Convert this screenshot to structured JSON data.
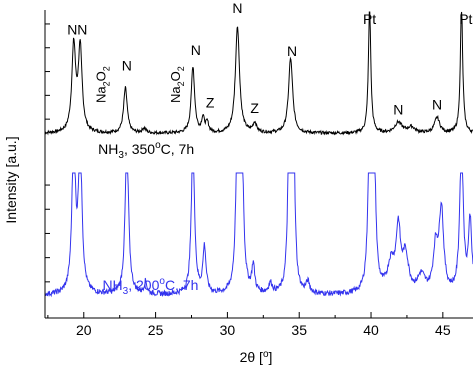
{
  "chart_data": {
    "type": "line",
    "title": "",
    "xlabel": "2θ [°]",
    "ylabel": "Intensity [a.u.]",
    "xlim": [
      17.3,
      47.1
    ],
    "x_ticks": [
      20,
      25,
      30,
      35,
      40,
      45
    ],
    "x_tick_labels": [
      "20",
      "25",
      "30",
      "35",
      "40",
      "45"
    ],
    "grid": false,
    "panels": [
      {
        "name": "NH3, 350°C, 7h",
        "label_parts": {
          "base": "NH",
          "sub": "3",
          "rest": ", 350",
          "sup": "o",
          "tail": "C, 7h"
        },
        "color": "#000000",
        "position": "top",
        "ylim": [
          0,
          100
        ],
        "baseline": 3,
        "noise": 1.3,
        "peaks": [
          {
            "x": 19.3,
            "h": 72,
            "w": 0.16
          },
          {
            "x": 19.75,
            "h": 70,
            "w": 0.16
          },
          {
            "x": 22.9,
            "h": 38,
            "w": 0.15
          },
          {
            "x": 24.2,
            "h": 4,
            "w": 0.15
          },
          {
            "x": 27.6,
            "h": 56,
            "w": 0.14
          },
          {
            "x": 28.3,
            "h": 12,
            "w": 0.12
          },
          {
            "x": 28.6,
            "h": 8,
            "w": 0.12
          },
          {
            "x": 30.7,
            "h": 90,
            "w": 0.17
          },
          {
            "x": 31.9,
            "h": 8,
            "w": 0.15
          },
          {
            "x": 34.4,
            "h": 63,
            "w": 0.17
          },
          {
            "x": 39.9,
            "h": 106,
            "w": 0.1
          },
          {
            "x": 41.9,
            "h": 9,
            "w": 0.3
          },
          {
            "x": 42.8,
            "h": 5,
            "w": 0.3
          },
          {
            "x": 44.6,
            "h": 13,
            "w": 0.22
          },
          {
            "x": 46.3,
            "h": 106,
            "w": 0.1
          }
        ],
        "annotations": [
          {
            "text": "NN",
            "x": 19.55,
            "y": 86
          },
          {
            "text": "N",
            "x": 23.0,
            "y": 56
          },
          {
            "text": "Na2O2",
            "x": 21.5,
            "y": 44,
            "rotate": true
          },
          {
            "text": "Na2O2",
            "x": 26.7,
            "y": 44,
            "rotate": true
          },
          {
            "text": "N",
            "x": 27.8,
            "y": 69
          },
          {
            "text": "Z",
            "x": 28.8,
            "y": 25
          },
          {
            "text": "N",
            "x": 30.7,
            "y": 104
          },
          {
            "text": "Z",
            "x": 31.9,
            "y": 20
          },
          {
            "text": "N",
            "x": 34.5,
            "y": 68
          },
          {
            "text": "Pt",
            "x": 39.9,
            "y": 95
          },
          {
            "text": "N",
            "x": 41.9,
            "y": 19
          },
          {
            "text": "N",
            "x": 44.6,
            "y": 23
          },
          {
            "text": "Pt",
            "x": 46.6,
            "y": 95
          }
        ]
      },
      {
        "name": "NH3, 200°C, 7h",
        "label_parts": {
          "base": "NH",
          "sub": "3",
          "rest": ", 200",
          "sup": "o",
          "tail": "C, 7h"
        },
        "color": "#3333ee",
        "position": "bottom",
        "ylim": [
          0,
          100
        ],
        "baseline": 4,
        "noise": 2.2,
        "peaks": [
          {
            "x": 19.3,
            "h": 130,
            "w": 0.14
          },
          {
            "x": 19.75,
            "h": 130,
            "w": 0.14
          },
          {
            "x": 23.0,
            "h": 130,
            "w": 0.14
          },
          {
            "x": 24.3,
            "h": 10,
            "w": 0.12
          },
          {
            "x": 27.6,
            "h": 130,
            "w": 0.13
          },
          {
            "x": 28.4,
            "h": 38,
            "w": 0.13
          },
          {
            "x": 30.7,
            "h": 130,
            "w": 0.13
          },
          {
            "x": 31.0,
            "h": 130,
            "w": 0.13
          },
          {
            "x": 31.8,
            "h": 22,
            "w": 0.12
          },
          {
            "x": 33.0,
            "h": 8,
            "w": 0.15
          },
          {
            "x": 34.3,
            "h": 130,
            "w": 0.12
          },
          {
            "x": 34.6,
            "h": 130,
            "w": 0.12
          },
          {
            "x": 35.6,
            "h": 9,
            "w": 0.15
          },
          {
            "x": 39.9,
            "h": 130,
            "w": 0.13
          },
          {
            "x": 40.2,
            "h": 130,
            "w": 0.13
          },
          {
            "x": 41.4,
            "h": 24,
            "w": 0.3
          },
          {
            "x": 41.9,
            "h": 50,
            "w": 0.18
          },
          {
            "x": 42.4,
            "h": 30,
            "w": 0.25
          },
          {
            "x": 43.5,
            "h": 14,
            "w": 0.3
          },
          {
            "x": 44.5,
            "h": 36,
            "w": 0.2
          },
          {
            "x": 44.9,
            "h": 68,
            "w": 0.18
          },
          {
            "x": 46.3,
            "h": 130,
            "w": 0.14
          },
          {
            "x": 46.9,
            "h": 60,
            "w": 0.14
          }
        ]
      }
    ]
  }
}
